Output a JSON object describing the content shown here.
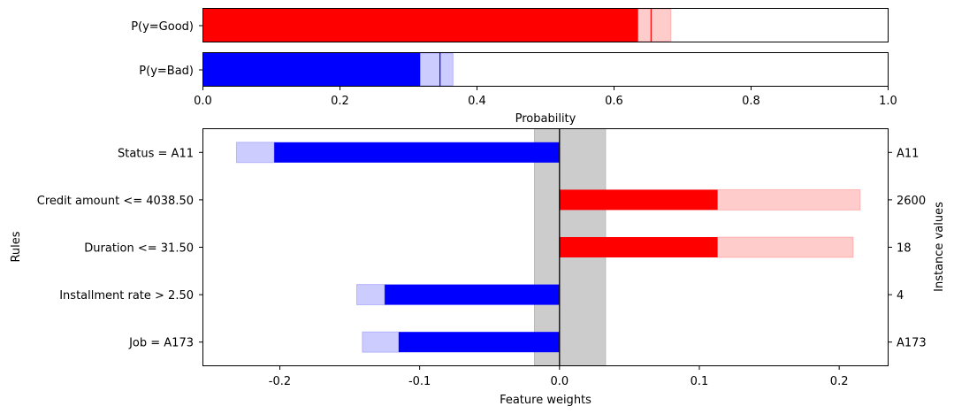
{
  "chart_data": [
    {
      "type": "bar",
      "orientation": "horizontal",
      "xlabel": "Probability",
      "xlim": [
        0.0,
        1.0
      ],
      "xticks": [
        "0.0",
        "0.2",
        "0.4",
        "0.6",
        "0.8",
        "1.0"
      ],
      "series": [
        {
          "name": "P(y=Good)",
          "color": "#ff0000",
          "value": 0.635,
          "interval": [
            0.635,
            0.683
          ],
          "marker": 0.654
        },
        {
          "name": "P(y=Bad)",
          "color": "#0000ff",
          "value": 0.317,
          "interval": [
            0.317,
            0.365
          ],
          "marker": 0.346
        }
      ]
    },
    {
      "type": "bar",
      "orientation": "horizontal",
      "xlabel": "Feature weights",
      "ylabel": "Rules",
      "ylabel_right": "Instance values",
      "xlim": [
        -0.255,
        0.235
      ],
      "xticks": [
        "-0.2",
        "-0.1",
        "0.0",
        "0.1",
        "0.2"
      ],
      "uncertainty_band": [
        -0.018,
        0.033
      ],
      "colors": {
        "positive": "#ff0000",
        "negative": "#0000ff",
        "band": "#cccccc"
      },
      "rules": [
        {
          "label": "Status = A11",
          "instance_value": "A11",
          "weight": -0.204,
          "interval": [
            -0.231,
            -0.204
          ]
        },
        {
          "label": "Credit amount <= 4038.50",
          "instance_value": "2600",
          "weight": 0.113,
          "interval": [
            0.113,
            0.215
          ]
        },
        {
          "label": "Duration <= 31.50",
          "instance_value": "18",
          "weight": 0.113,
          "interval": [
            0.113,
            0.21
          ]
        },
        {
          "label": "Installment rate > 2.50",
          "instance_value": "4",
          "weight": -0.125,
          "interval": [
            -0.145,
            -0.125
          ]
        },
        {
          "label": "Job = A173",
          "instance_value": "A173",
          "weight": -0.115,
          "interval": [
            -0.141,
            -0.115
          ]
        }
      ]
    }
  ]
}
